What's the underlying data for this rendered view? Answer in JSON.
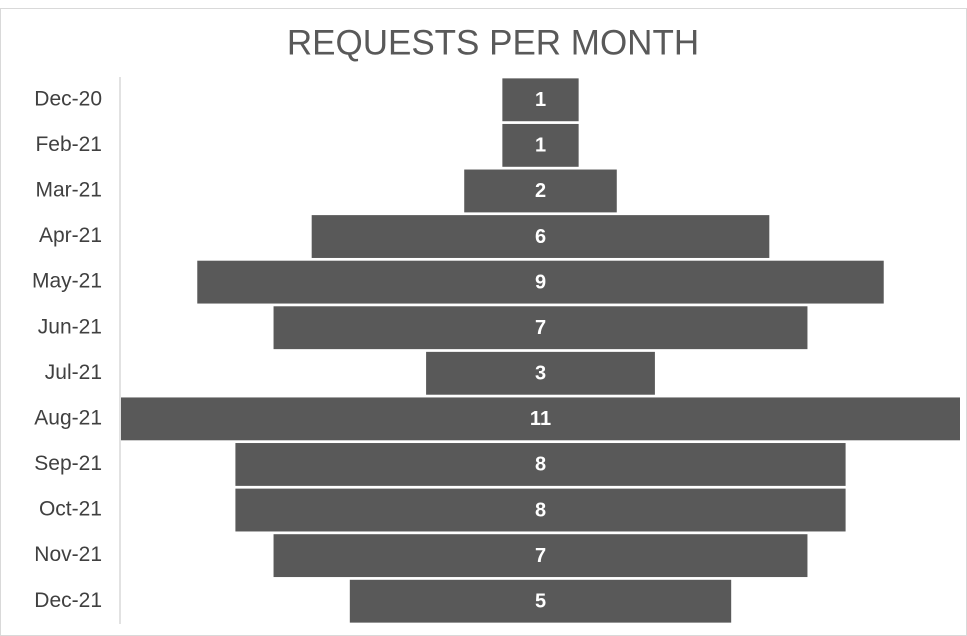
{
  "chart_data": {
    "type": "funnel",
    "title": "REQUESTS PER MONTH",
    "categories": [
      "Dec-20",
      "Feb-21",
      "Mar-21",
      "Apr-21",
      "May-21",
      "Jun-21",
      "Jul-21",
      "Aug-21",
      "Sep-21",
      "Oct-21",
      "Nov-21",
      "Dec-21"
    ],
    "values": [
      1,
      1,
      2,
      6,
      9,
      7,
      3,
      11,
      8,
      8,
      7,
      5
    ],
    "color": "#595959"
  }
}
